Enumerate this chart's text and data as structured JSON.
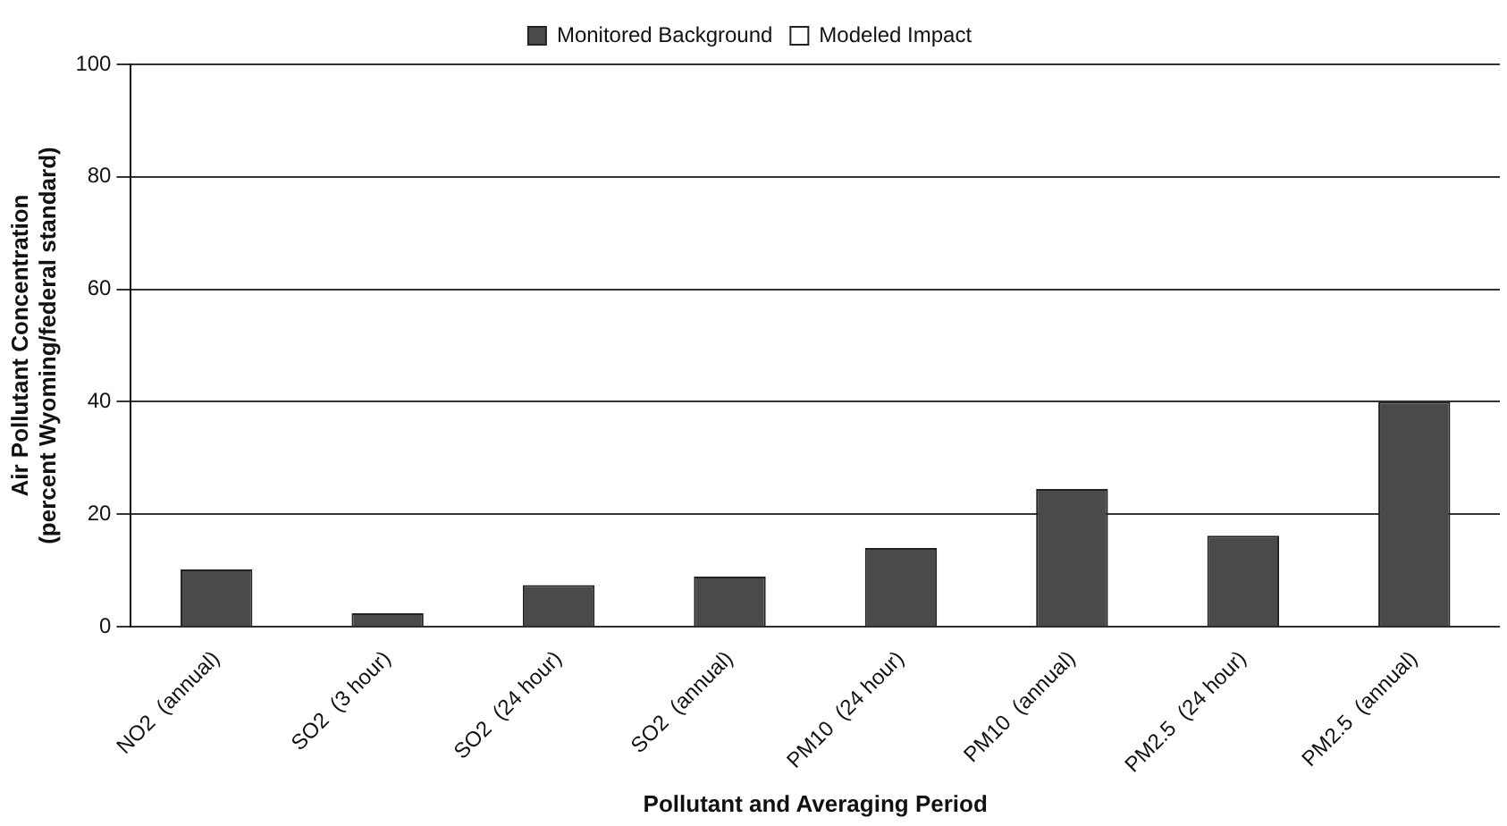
{
  "chart_data": {
    "type": "bar",
    "xlabel": "Pollutant and Averaging Period",
    "ylabel": "Air Pollutant Concentration\n(percent Wyoming/federal standard)",
    "categories": [
      "NO2  (annual)",
      "SO2  (3 hour)",
      "SO2  (24 hour)",
      "SO2  (annual)",
      "PM10  (24 hour)",
      "PM10  (annual)",
      "PM2.5  (24 hour)",
      "PM2.5  (annual)"
    ],
    "series": [
      {
        "name": "Monitored Background",
        "color": "#4a4a48",
        "values": [
          10.2,
          2.4,
          7.4,
          8.9,
          14,
          24.5,
          16.2,
          40
        ]
      },
      {
        "name": "Modeled Impact",
        "color": "#ffffff",
        "values": [
          null,
          null,
          null,
          null,
          null,
          null,
          null,
          null
        ]
      }
    ],
    "stacked": true,
    "ylim": [
      0,
      100
    ],
    "yticks": [
      0,
      20,
      40,
      60,
      80,
      100
    ],
    "grid": "y",
    "legend": "top"
  }
}
